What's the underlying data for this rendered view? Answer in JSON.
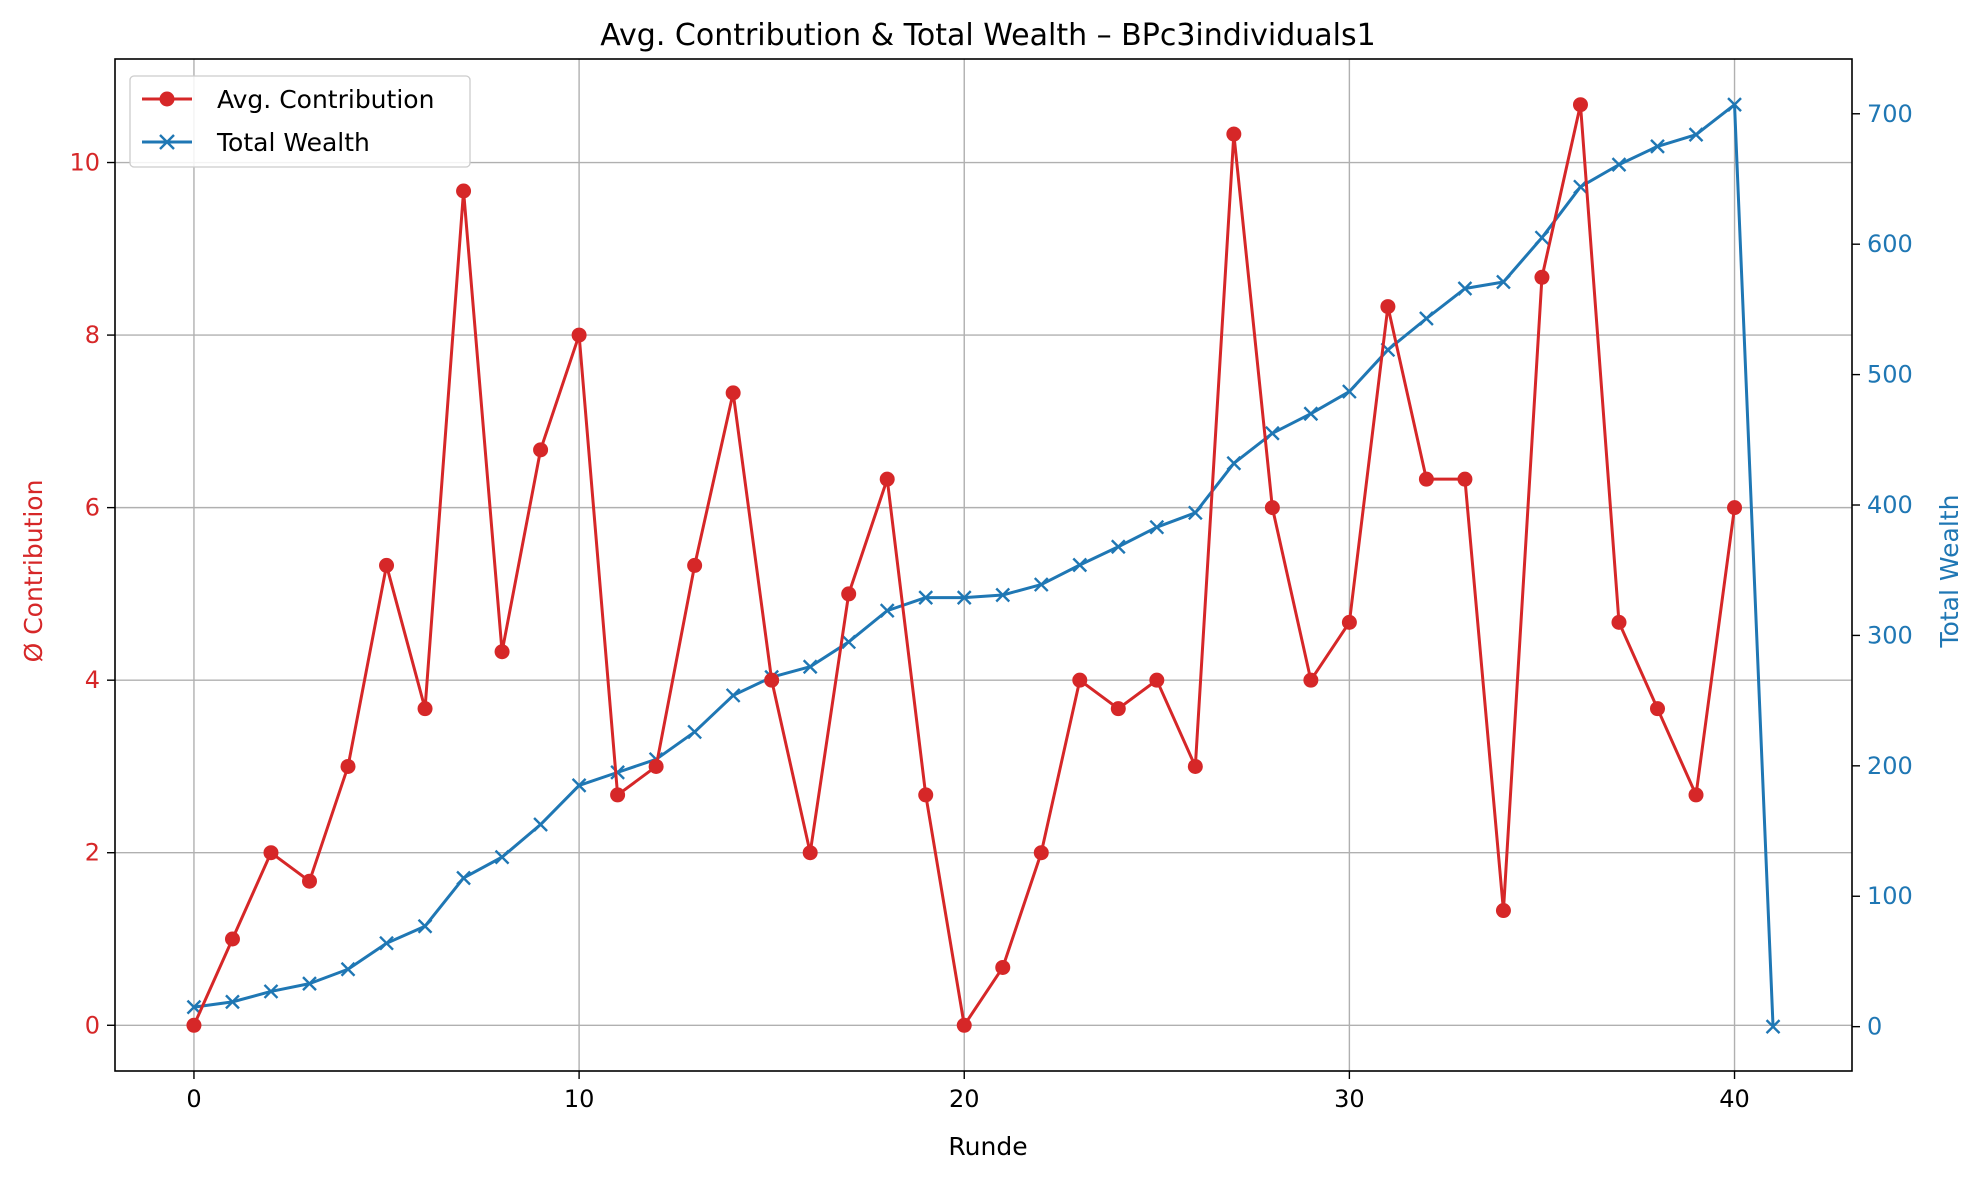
{
  "chart_data": {
    "type": "line",
    "title": "Avg. Contribution & Total Wealth – BPc3individuals1",
    "xlabel": "Runde",
    "ylabel_left": "Ø Contribution",
    "ylabel_right": "Total Wealth",
    "xlim": [
      -2.05,
      43.05
    ],
    "ylim_left": [
      -0.53,
      11.2
    ],
    "ylim_right": [
      -34,
      742
    ],
    "xticks": [
      0,
      10,
      20,
      30,
      40
    ],
    "yticks_left": [
      0,
      2,
      4,
      6,
      8,
      10
    ],
    "yticks_right": [
      0,
      100,
      200,
      300,
      400,
      500,
      600,
      700
    ],
    "grid": true,
    "legend_position": "top-left",
    "colors": {
      "contribution": "#d62728",
      "wealth": "#1f77b4",
      "grid": "#b0b0b0"
    },
    "series": [
      {
        "name": "Avg. Contribution",
        "axis": "left",
        "marker": "circle",
        "x": [
          0,
          1,
          2,
          3,
          4,
          5,
          6,
          7,
          8,
          9,
          10,
          11,
          12,
          13,
          14,
          15,
          16,
          17,
          18,
          19,
          20,
          21,
          22,
          23,
          24,
          25,
          26,
          27,
          28,
          29,
          30,
          31,
          32,
          33,
          34,
          35,
          36,
          37,
          38,
          39,
          40
        ],
        "values": [
          0,
          1,
          2,
          1.67,
          3,
          5.33,
          3.67,
          9.67,
          4.33,
          6.67,
          8,
          2.67,
          3,
          5.33,
          7.33,
          4,
          2,
          5,
          6.33,
          2.67,
          0,
          0.67,
          2,
          4,
          3.67,
          4,
          3,
          10.33,
          6,
          4,
          4.67,
          8.33,
          6.33,
          6.33,
          1.33,
          8.67,
          10.67,
          4.67,
          3.67,
          2.67,
          6
        ]
      },
      {
        "name": "Total Wealth",
        "axis": "right",
        "marker": "x",
        "x": [
          0,
          1,
          2,
          3,
          4,
          5,
          6,
          7,
          8,
          9,
          10,
          11,
          12,
          13,
          14,
          15,
          16,
          17,
          18,
          19,
          20,
          21,
          22,
          23,
          24,
          25,
          26,
          27,
          28,
          29,
          30,
          31,
          32,
          33,
          34,
          35,
          36,
          37,
          38,
          39,
          40,
          41
        ],
        "values": [
          15,
          19,
          27,
          33,
          44,
          64,
          77,
          114,
          130,
          155,
          185,
          195,
          205,
          226,
          254,
          268,
          276,
          295,
          319,
          329,
          329,
          331,
          339,
          354,
          368,
          383,
          394,
          432,
          455,
          470,
          487,
          519,
          543,
          566,
          571,
          605,
          644,
          661,
          675,
          684,
          707,
          0
        ]
      }
    ]
  }
}
